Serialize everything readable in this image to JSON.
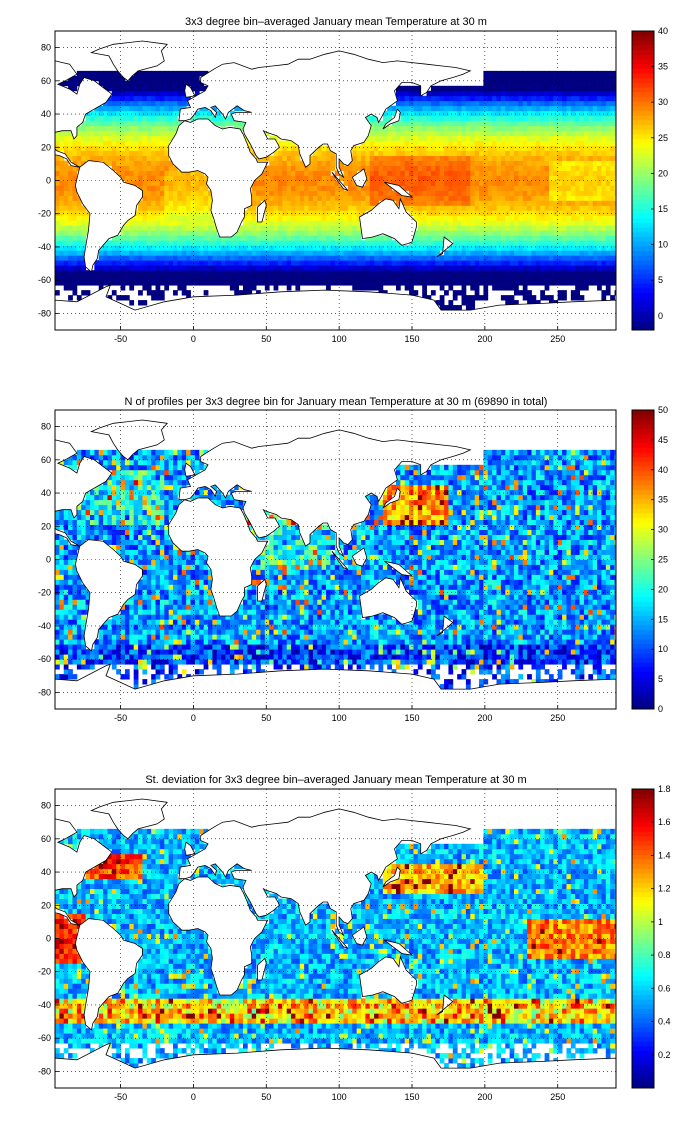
{
  "chart_data": [
    {
      "type": "heatmap",
      "title": "3x3 degree bin–averaged January mean Temperature at 30 m",
      "xlim": [
        -95,
        290
      ],
      "ylim": [
        -90,
        90
      ],
      "xticks": [
        -50,
        0,
        50,
        100,
        150,
        200,
        250
      ],
      "yticks": [
        -80,
        -60,
        -40,
        -20,
        0,
        20,
        40,
        60,
        80
      ],
      "colorbar_ticks": [
        0,
        5,
        10,
        15,
        20,
        25,
        30,
        35,
        40
      ],
      "clim": [
        -2,
        40
      ],
      "colormap": "jet",
      "bin_size_deg": 3,
      "grid": "dotted",
      "value_kind": "temperature"
    },
    {
      "type": "heatmap",
      "title": "N of profiles per 3x3 degree bin for January mean Temperature at 30 m (69890 in total)",
      "xlim": [
        -95,
        290
      ],
      "ylim": [
        -90,
        90
      ],
      "xticks": [
        -50,
        0,
        50,
        100,
        150,
        200,
        250
      ],
      "yticks": [
        -80,
        -60,
        -40,
        -20,
        0,
        20,
        40,
        60,
        80
      ],
      "colorbar_ticks": [
        0,
        5,
        10,
        15,
        20,
        25,
        30,
        35,
        40,
        45,
        50
      ],
      "clim": [
        0,
        50
      ],
      "colormap": "jet",
      "bin_size_deg": 3,
      "grid": "dotted",
      "value_kind": "count"
    },
    {
      "type": "heatmap",
      "title": "St. deviation for 3x3 degree bin–averaged January mean Temperature at 30 m",
      "xlim": [
        -95,
        290
      ],
      "ylim": [
        -90,
        90
      ],
      "xticks": [
        -50,
        0,
        50,
        100,
        150,
        200,
        250
      ],
      "yticks": [
        -80,
        -60,
        -40,
        -20,
        0,
        20,
        40,
        60,
        80
      ],
      "colorbar_ticks": [
        0.2,
        0.4,
        0.6,
        0.8,
        1,
        1.2,
        1.4,
        1.6,
        1.8
      ],
      "clim": [
        0,
        1.8
      ],
      "colormap": "jet",
      "bin_size_deg": 3,
      "grid": "dotted",
      "value_kind": "stdev"
    }
  ]
}
